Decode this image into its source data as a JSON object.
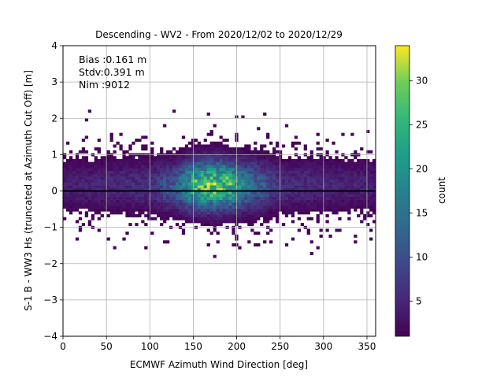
{
  "chart_data": {
    "type": "heatmap",
    "title": "Descending - WV2 - From 2020/12/02 to 2020/12/29",
    "xlabel": "ECMWF Azimuth Wind Direction [deg]",
    "ylabel": "S-1 B - WW3 Hs (truncated at Azimuth Cut Off) [m]",
    "xlim": [
      0,
      360
    ],
    "ylim": [
      -4,
      4
    ],
    "xticks": [
      "0",
      "50",
      "100",
      "150",
      "200",
      "250",
      "300",
      "350"
    ],
    "yticks": [
      "−4",
      "−3",
      "−2",
      "−1",
      "0",
      "1",
      "2",
      "3",
      "4"
    ],
    "grid": true,
    "zero_line": 0,
    "annotations": [
      "Bias :0.161 m",
      "Stdv:0.391 m",
      "Nim :9012"
    ],
    "colorbar": {
      "label": "count",
      "colormap": "viridis",
      "range": [
        1,
        34
      ],
      "ticks": [
        "5",
        "10",
        "15",
        "20",
        "25",
        "30"
      ]
    },
    "bin_size": {
      "x": 3.6,
      "y": 0.08
    },
    "density_profile": [
      {
        "x": 0,
        "count": 4
      },
      {
        "x": 50,
        "count": 5
      },
      {
        "x": 100,
        "count": 6
      },
      {
        "x": 130,
        "count": 12
      },
      {
        "x": 150,
        "count": 24
      },
      {
        "x": 170,
        "count": 28
      },
      {
        "x": 190,
        "count": 26
      },
      {
        "x": 210,
        "count": 16
      },
      {
        "x": 250,
        "count": 6
      },
      {
        "x": 300,
        "count": 5
      },
      {
        "x": 360,
        "count": 4
      }
    ]
  }
}
